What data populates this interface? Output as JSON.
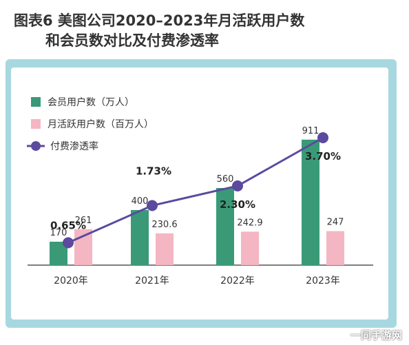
{
  "title_line1": "图表6  美图公司2020–2023年月活跃用户数",
  "title_line2": "和会员数对比及付费渗透率",
  "watermark": "一同手游网",
  "colors": {
    "members": "#3a9a78",
    "mau": "#f4b6c2",
    "rate": "#5b4a9e",
    "panel": "#a7d8e0",
    "axis": "#555555"
  },
  "chart_data": {
    "type": "bar",
    "categories": [
      "2020年",
      "2021年",
      "2022年",
      "2023年"
    ],
    "series": [
      {
        "name": "会员用户数（万人）",
        "type": "bar",
        "values": [
          170,
          400,
          560,
          911
        ],
        "labels": [
          "170",
          "400",
          "560",
          "911"
        ]
      },
      {
        "name": "月活跃用户数（百万人）",
        "type": "bar",
        "values": [
          261,
          230.6,
          242.9,
          247
        ],
        "labels": [
          "261",
          "230.6",
          "242.9",
          "247"
        ]
      },
      {
        "name": "付费渗透率",
        "type": "line",
        "values": [
          0.65,
          1.73,
          2.3,
          3.7
        ],
        "labels": [
          "0.65%",
          "1.73%",
          "2.30%",
          "3.70%"
        ]
      }
    ],
    "ylim": [
      0,
      1000
    ],
    "rate_ylim": [
      0,
      4
    ],
    "grid": false,
    "legend_position": "top-left"
  }
}
